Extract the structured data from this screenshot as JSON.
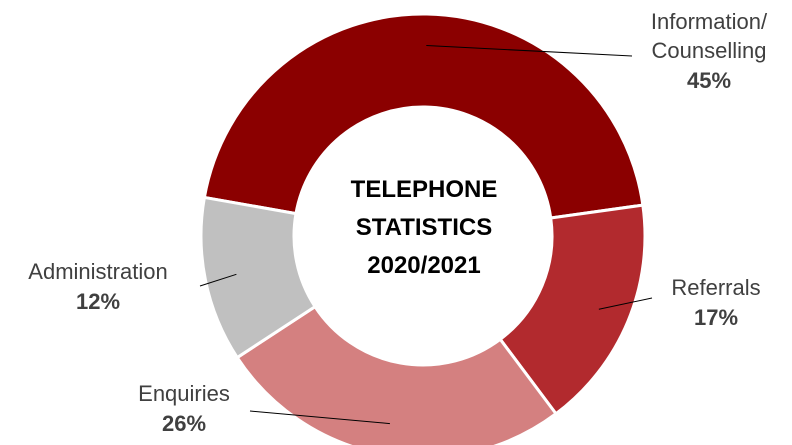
{
  "chart_data": {
    "type": "pie",
    "variant": "donut",
    "center_title": [
      "TELEPHONE",
      "STATISTICS",
      "2020/2021"
    ],
    "slices": [
      {
        "label": [
          "Information/",
          "Counselling"
        ],
        "value": 45,
        "value_label": "45%",
        "color": "#8b0000"
      },
      {
        "label": [
          "Referrals"
        ],
        "value": 17,
        "value_label": "17%",
        "color": "#b22a2e"
      },
      {
        "label": [
          "Enquiries"
        ],
        "value": 26,
        "value_label": "26%",
        "color": "#d48080"
      },
      {
        "label": [
          "Administration"
        ],
        "value": 12,
        "value_label": "12%",
        "color": "#c0c0c0"
      }
    ],
    "legend": "none"
  }
}
